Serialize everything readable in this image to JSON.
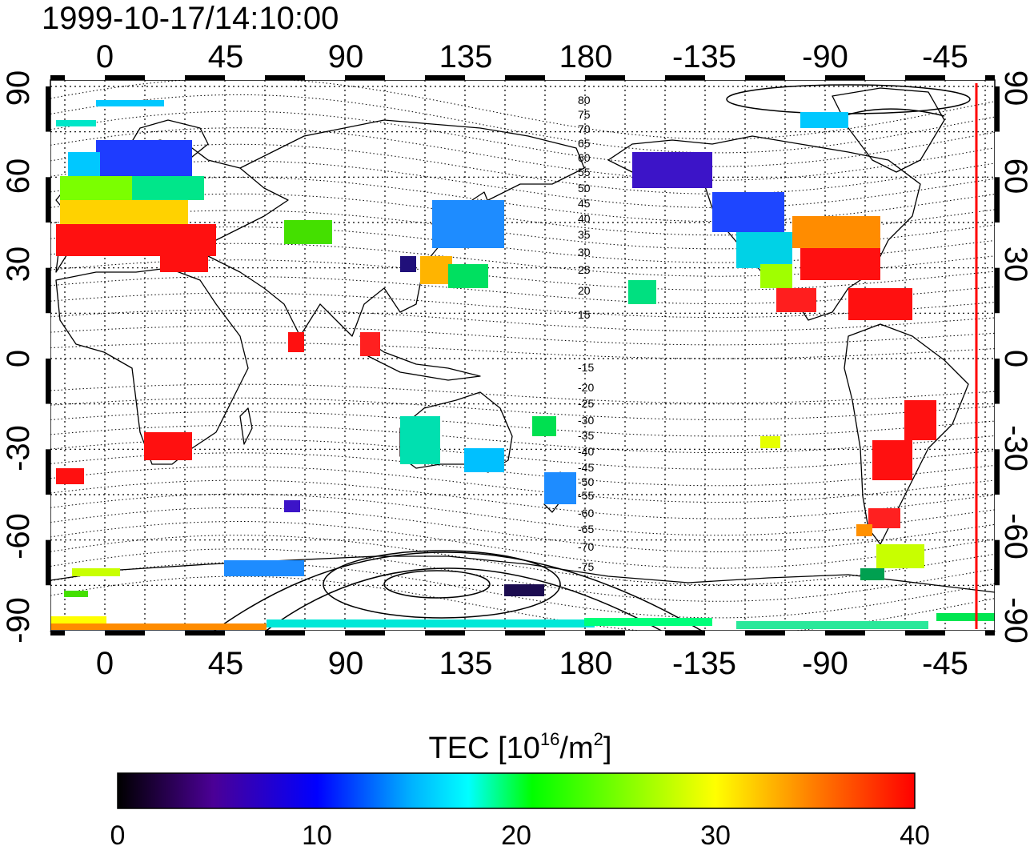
{
  "title": "1999-10-17/14:10:00",
  "axes": {
    "lon_ticks": [
      "0",
      "45",
      "90",
      "135",
      "180",
      "-135",
      "-90",
      "-45"
    ],
    "lat_ticks": [
      "90",
      "60",
      "30",
      "0",
      "-30",
      "-60",
      "-90"
    ]
  },
  "mag_lat_labels": [
    "80",
    "75",
    "70",
    "65",
    "60",
    "55",
    "50",
    "45",
    "40",
    "35",
    "30",
    "25",
    "20",
    "15",
    "-15",
    "-20",
    "-25",
    "-30",
    "-35",
    "-40",
    "-45",
    "-50",
    "-55",
    "-60",
    "-65",
    "-70",
    "-75"
  ],
  "colorbar": {
    "label_main": "TEC  [10",
    "label_sup1": "16",
    "label_mid": "/m",
    "label_sup2": "2",
    "label_end": "]",
    "ticks": [
      "0",
      "10",
      "20",
      "30",
      "40"
    ],
    "min": 0,
    "max": 40
  },
  "colors": {
    "terminator": "#ff0000",
    "stops": [
      "#000000",
      "#4b0096",
      "#0000ff",
      "#00b4ff",
      "#00ffff",
      "#00ff00",
      "#ffff00",
      "#ff8000",
      "#ff0000"
    ]
  }
}
